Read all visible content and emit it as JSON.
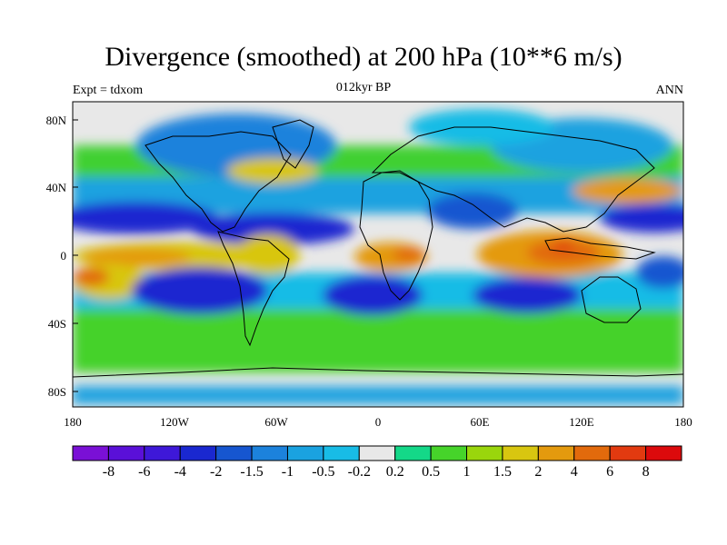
{
  "title": "Divergence (smoothed) at 200 hPa (10**6 m/s)",
  "subtitle_left": "Expt = tdxom",
  "subtitle_center": "012kyr BP",
  "subtitle_right": "ANN",
  "lat_ticks": [
    "80N",
    "40N",
    "0",
    "40S",
    "80S"
  ],
  "lon_ticks": [
    "180",
    "120W",
    "60W",
    "0",
    "60E",
    "120E",
    "180"
  ],
  "colorbar": {
    "colors": [
      "#7a10d6",
      "#5a10d8",
      "#3e18d8",
      "#1a28d0",
      "#1656d0",
      "#1c82dc",
      "#1aa2e0",
      "#18bce6",
      "#e8e8e8",
      "#14d888",
      "#46d42a",
      "#9ad60c",
      "#d8c610",
      "#e49a0e",
      "#e26a0c",
      "#e23a10",
      "#dc0a0c"
    ],
    "labels": [
      "-8",
      "-6",
      "-4",
      "-2",
      "-1.5",
      "-1",
      "-0.5",
      "-0.2",
      "0.2",
      "0.5",
      "1",
      "1.5",
      "2",
      "4",
      "6",
      "8"
    ]
  }
}
